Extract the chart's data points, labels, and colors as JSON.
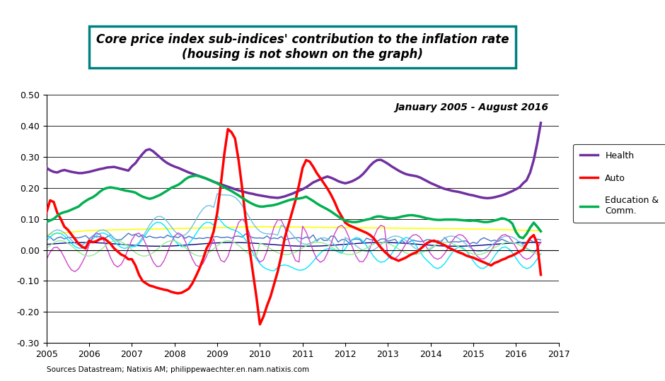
{
  "title_line1": "Core price index sub-indices' contribution to the inflation rate",
  "title_line2": "(housing is not shown on the graph)",
  "subtitle": "January 2005 - August 2016",
  "source": "Sources Datastream; Natixis AM; philippewaechter.en.nam.natixis.com",
  "ylim": [
    -0.3,
    0.5
  ],
  "yticks": [
    -0.3,
    -0.2,
    -0.1,
    0.0,
    0.1,
    0.2,
    0.3,
    0.4,
    0.5
  ],
  "xlim_start": 2005.0,
  "xlim_end": 2017.0,
  "bg_color": "#ffffff",
  "title_box_color": "#008080",
  "series": {
    "health": {
      "color": "#7030a0",
      "linewidth": 2.5,
      "label": "Health"
    },
    "auto": {
      "color": "#ff0000",
      "linewidth": 2.5,
      "label": "Auto"
    },
    "education": {
      "color": "#00b050",
      "linewidth": 2.5,
      "label": "Education &\nComm."
    },
    "yellow": {
      "color": "#ffff00",
      "linewidth": 1.2
    },
    "blue_med": {
      "color": "#4472c4",
      "linewidth": 1.0
    },
    "blue_light": {
      "color": "#70c0e0",
      "linewidth": 1.0
    },
    "purple_thin": {
      "color": "#cc44cc",
      "linewidth": 1.0
    },
    "navy": {
      "color": "#000080",
      "linewidth": 1.0
    },
    "cyan": {
      "color": "#00e5ff",
      "linewidth": 1.0
    },
    "lime": {
      "color": "#90ee90",
      "linewidth": 1.0
    }
  }
}
